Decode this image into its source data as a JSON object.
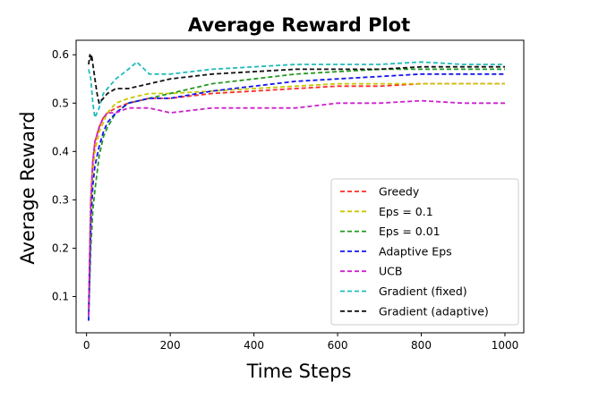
{
  "chart_data": {
    "type": "line",
    "title": "Average Reward Plot",
    "xlabel": "Time Steps",
    "ylabel": "Average Reward",
    "xlim": [
      -25,
      1045
    ],
    "ylim": [
      0.025,
      0.63
    ],
    "xticks": [
      0,
      200,
      400,
      600,
      800,
      1000
    ],
    "yticks": [
      0.1,
      0.2,
      0.3,
      0.4,
      0.5,
      0.6
    ],
    "xtick_labels": [
      "0",
      "200",
      "400",
      "600",
      "800",
      "1000"
    ],
    "ytick_labels": [
      "0.1",
      "0.2",
      "0.3",
      "0.4",
      "0.5",
      "0.6"
    ],
    "grid": false,
    "legend_position": "lower-right",
    "line_style": "dashed",
    "series": [
      {
        "name": "Greedy",
        "color": "#ff2a2a",
        "x": [
          5,
          10,
          15,
          20,
          30,
          40,
          50,
          70,
          100,
          150,
          200,
          300,
          400,
          500,
          600,
          700,
          800,
          900,
          1000
        ],
        "y": [
          0.08,
          0.3,
          0.38,
          0.42,
          0.45,
          0.47,
          0.48,
          0.49,
          0.5,
          0.51,
          0.51,
          0.52,
          0.525,
          0.53,
          0.535,
          0.535,
          0.54,
          0.54,
          0.54
        ]
      },
      {
        "name": "Eps = 0.1",
        "color": "#c8c800",
        "x": [
          5,
          10,
          15,
          20,
          30,
          40,
          50,
          70,
          100,
          150,
          200,
          300,
          400,
          500,
          600,
          700,
          800,
          900,
          1000
        ],
        "y": [
          0.07,
          0.28,
          0.36,
          0.4,
          0.44,
          0.46,
          0.48,
          0.5,
          0.51,
          0.52,
          0.52,
          0.525,
          0.53,
          0.535,
          0.54,
          0.54,
          0.54,
          0.54,
          0.54
        ]
      },
      {
        "name": "Eps = 0.01",
        "color": "#229922",
        "x": [
          5,
          10,
          15,
          20,
          30,
          40,
          50,
          70,
          100,
          150,
          200,
          300,
          400,
          500,
          600,
          700,
          800,
          900,
          1000
        ],
        "y": [
          0.06,
          0.2,
          0.28,
          0.32,
          0.39,
          0.43,
          0.45,
          0.48,
          0.5,
          0.51,
          0.52,
          0.54,
          0.55,
          0.56,
          0.565,
          0.57,
          0.57,
          0.57,
          0.57
        ]
      },
      {
        "name": "Adaptive Eps",
        "color": "#1515ee",
        "x": [
          5,
          10,
          15,
          20,
          30,
          40,
          50,
          70,
          100,
          150,
          200,
          300,
          400,
          500,
          600,
          700,
          800,
          900,
          1000
        ],
        "y": [
          0.05,
          0.25,
          0.33,
          0.37,
          0.41,
          0.44,
          0.46,
          0.48,
          0.5,
          0.51,
          0.51,
          0.525,
          0.535,
          0.545,
          0.55,
          0.555,
          0.56,
          0.56,
          0.56
        ]
      },
      {
        "name": "UCB",
        "color": "#cc22cc",
        "x": [
          5,
          10,
          15,
          20,
          30,
          40,
          50,
          70,
          100,
          150,
          200,
          300,
          400,
          500,
          600,
          700,
          800,
          900,
          1000
        ],
        "y": [
          0.06,
          0.3,
          0.38,
          0.42,
          0.45,
          0.47,
          0.48,
          0.48,
          0.49,
          0.49,
          0.48,
          0.49,
          0.49,
          0.49,
          0.5,
          0.5,
          0.505,
          0.5,
          0.5
        ]
      },
      {
        "name": "Gradient (fixed)",
        "color": "#22bbbb",
        "x": [
          5,
          10,
          15,
          20,
          30,
          40,
          50,
          70,
          100,
          120,
          150,
          200,
          300,
          400,
          500,
          600,
          700,
          800,
          900,
          1000
        ],
        "y": [
          0.57,
          0.55,
          0.5,
          0.47,
          0.49,
          0.52,
          0.53,
          0.55,
          0.57,
          0.585,
          0.56,
          0.56,
          0.57,
          0.575,
          0.58,
          0.58,
          0.58,
          0.585,
          0.58,
          0.58
        ]
      },
      {
        "name": "Gradient (adaptive)",
        "color": "#111111",
        "x": [
          5,
          8,
          10,
          12,
          15,
          20,
          25,
          30,
          40,
          50,
          70,
          100,
          150,
          200,
          300,
          400,
          500,
          600,
          700,
          800,
          900,
          1000
        ],
        "y": [
          0.58,
          0.6,
          0.59,
          0.6,
          0.58,
          0.55,
          0.52,
          0.5,
          0.51,
          0.52,
          0.53,
          0.53,
          0.54,
          0.55,
          0.56,
          0.565,
          0.57,
          0.57,
          0.57,
          0.575,
          0.575,
          0.575
        ]
      }
    ]
  }
}
